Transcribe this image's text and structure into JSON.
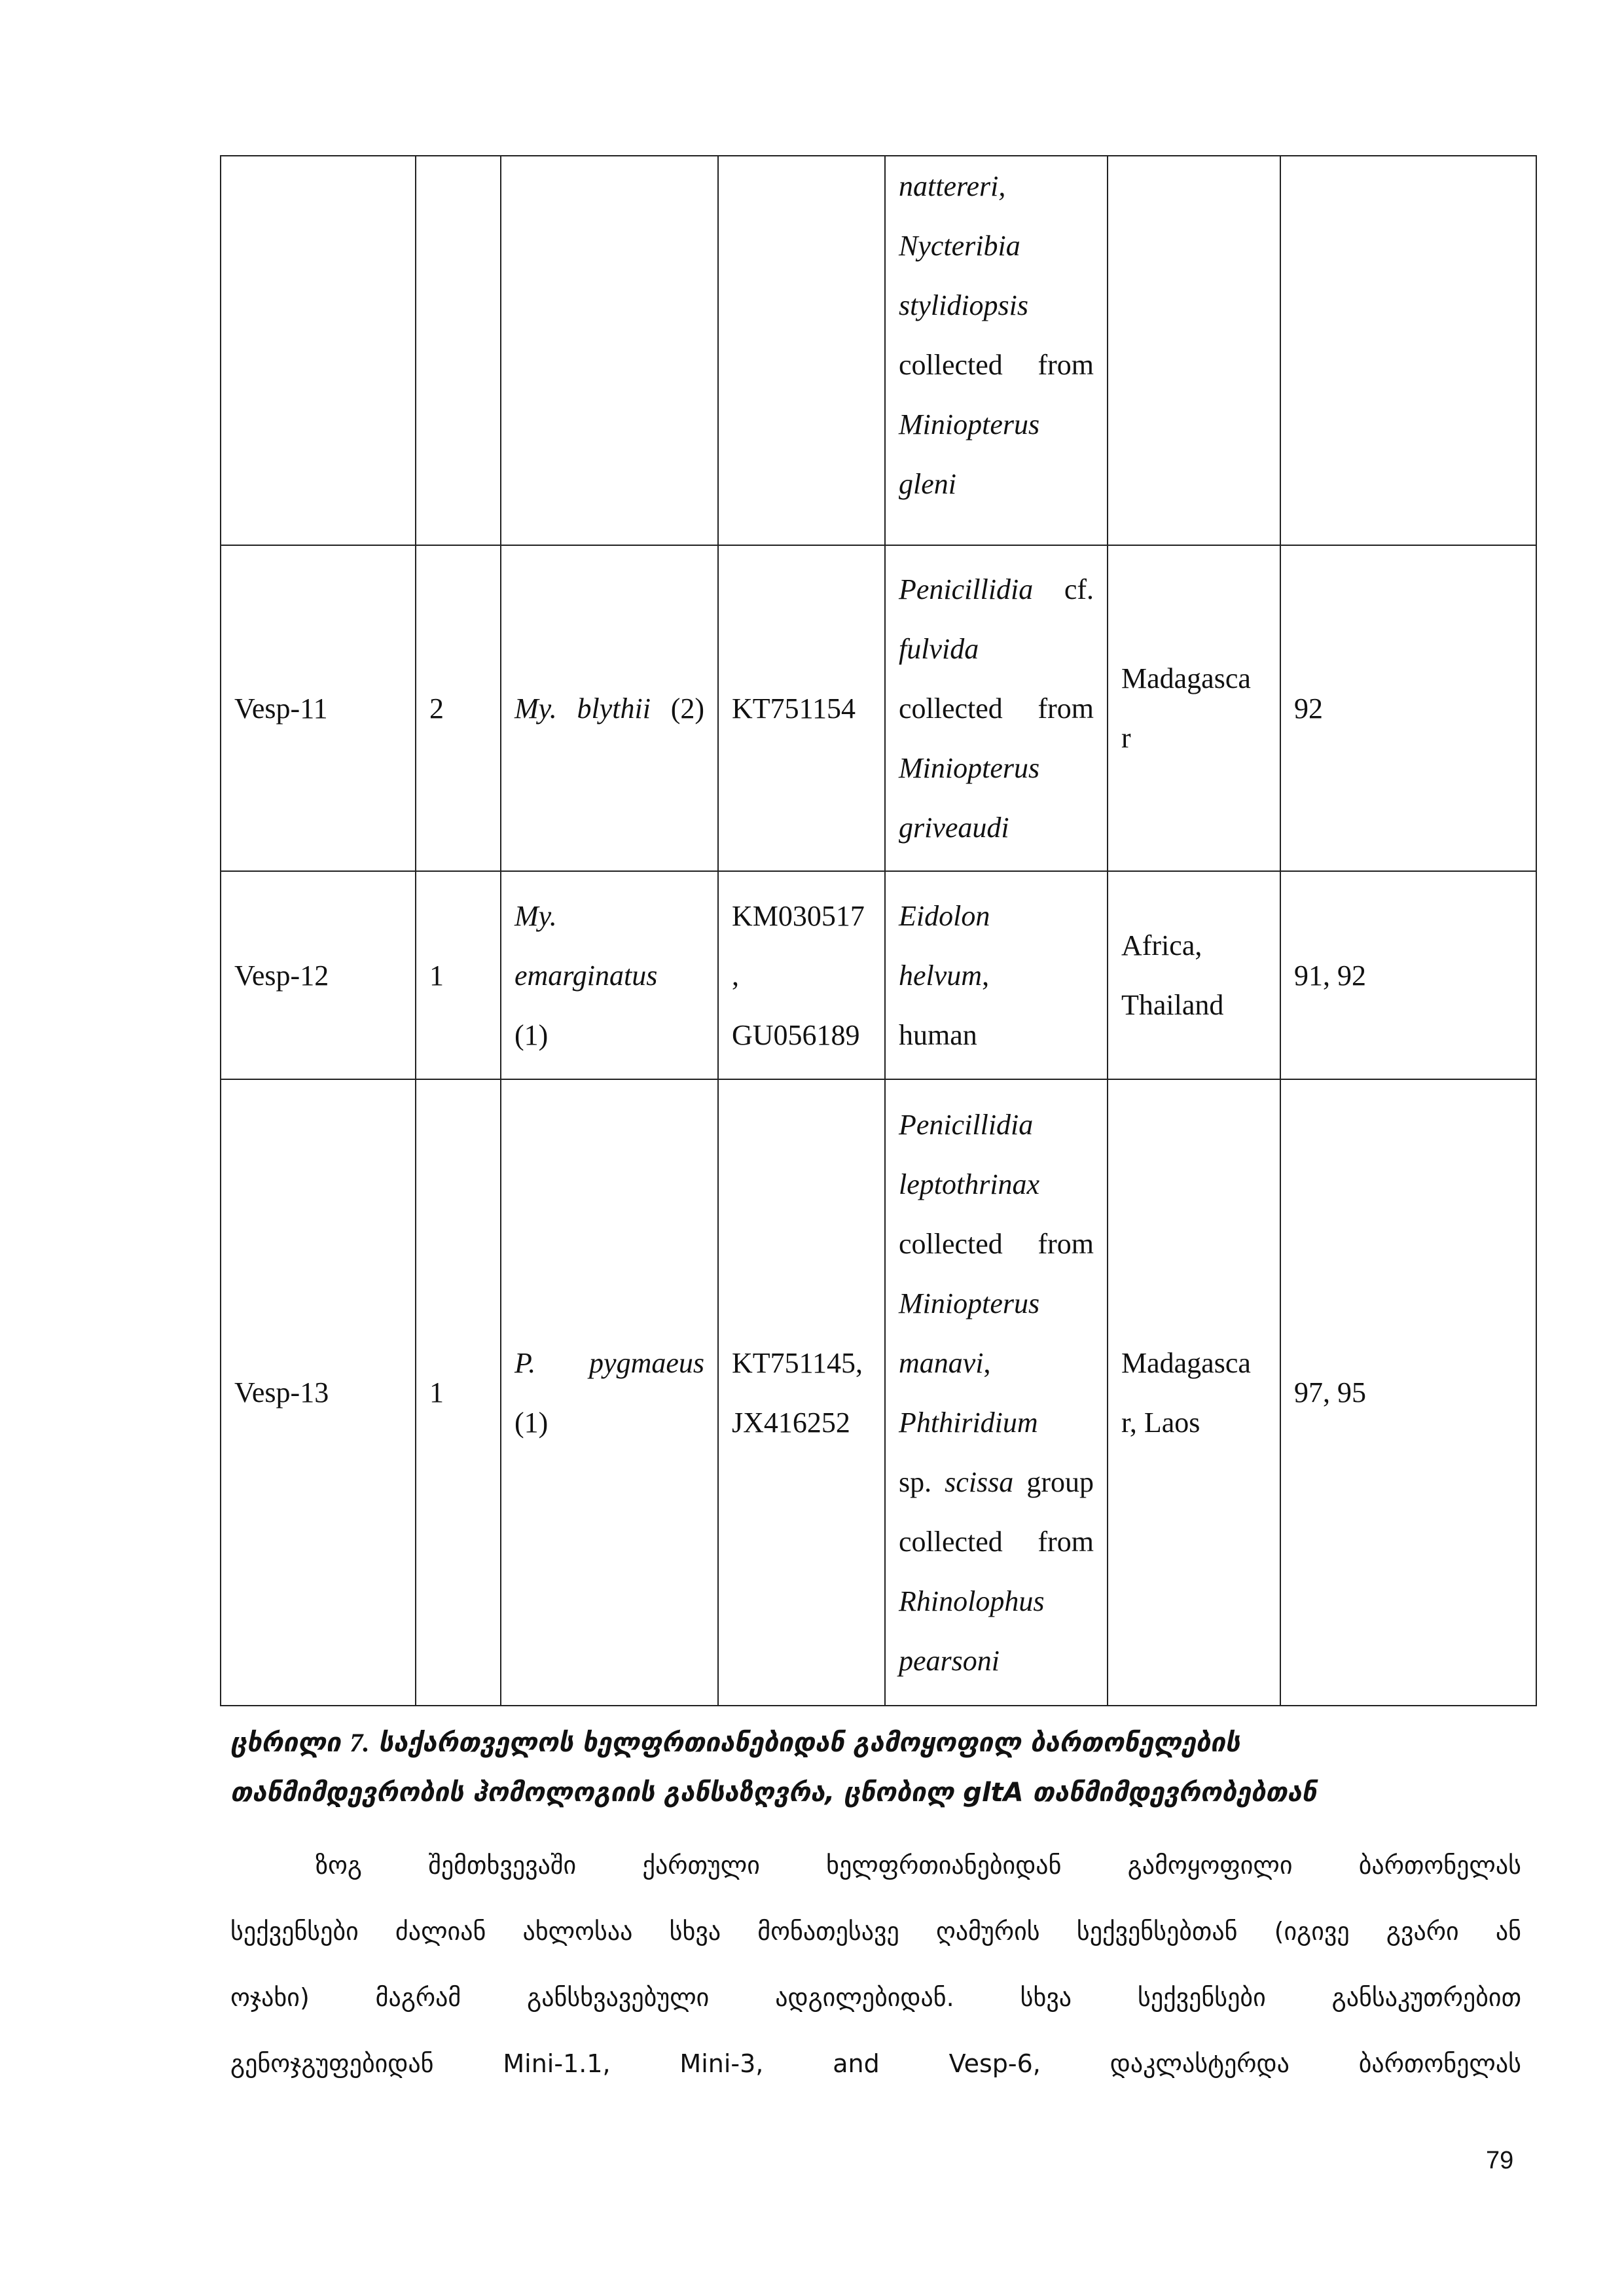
{
  "table": {
    "rows": [
      {
        "cells": [
          [],
          [],
          [],
          [],
          [
            [
              {
                "text": "nattereri,",
                "italic": true
              }
            ],
            [
              {
                "text": "Nycteribia",
                "italic": true
              }
            ],
            [
              {
                "text": "stylidiopsis",
                "italic": true
              }
            ],
            [
              {
                "text": "collected from"
              }
            ],
            [
              {
                "text": "Miniopterus",
                "italic": true
              }
            ],
            [
              {
                "text": "gleni",
                "italic": true
              }
            ]
          ],
          [],
          []
        ]
      },
      {
        "cells": [
          [
            [
              {
                "text": "Vesp-11"
              }
            ]
          ],
          [
            [
              {
                "text": "2"
              }
            ]
          ],
          [
            [
              {
                "text": "My. blythii",
                "italic": true
              },
              {
                "text": " (2)"
              }
            ]
          ],
          [
            [
              {
                "text": "KT751154"
              }
            ]
          ],
          [
            [
              {
                "text": "Penicillidia",
                "italic": true
              },
              {
                "text": " cf."
              }
            ],
            [
              {
                "text": "fulvida",
                "italic": true
              }
            ],
            [
              {
                "text": "collected from"
              }
            ],
            [
              {
                "text": "Miniopterus",
                "italic": true
              }
            ],
            [
              {
                "text": "griveaudi",
                "italic": true
              }
            ]
          ],
          [
            [
              {
                "text": "Madagasca"
              }
            ],
            [
              {
                "text": "r"
              }
            ]
          ],
          [
            [
              {
                "text": "92"
              }
            ]
          ]
        ]
      },
      {
        "cells": [
          [
            [
              {
                "text": "Vesp-12"
              }
            ]
          ],
          [
            [
              {
                "text": "1"
              }
            ]
          ],
          [
            [
              {
                "text": "My.",
                "italic": true
              }
            ],
            [
              {
                "text": "emarginatus",
                "italic": true
              }
            ],
            [
              {
                "text": "(1)"
              }
            ]
          ],
          [
            [
              {
                "text": "KM030517"
              }
            ],
            [
              {
                "text": ","
              }
            ],
            [
              {
                "text": "GU056189"
              }
            ]
          ],
          [
            [
              {
                "text": "Eidolon",
                "italic": true
              }
            ],
            [
              {
                "text": "helvum",
                "italic": true
              },
              {
                "text": ","
              }
            ],
            [
              {
                "text": "human"
              }
            ]
          ],
          [
            [
              {
                "text": "Africa,"
              }
            ],
            [
              {
                "text": "Thailand"
              }
            ]
          ],
          [
            [
              {
                "text": "91, 92"
              }
            ]
          ]
        ]
      },
      {
        "cells": [
          [
            [
              {
                "text": "Vesp-13"
              }
            ]
          ],
          [
            [
              {
                "text": "1"
              }
            ]
          ],
          [
            [
              {
                "text": "P. pygmaeus",
                "italic": true
              }
            ],
            [
              {
                "text": "(1)"
              }
            ]
          ],
          [
            [
              {
                "text": "KT751145,"
              }
            ],
            [
              {
                "text": "JX416252"
              }
            ]
          ],
          [
            [
              {
                "text": "Penicillidia",
                "italic": true
              }
            ],
            [
              {
                "text": "leptothrinax",
                "italic": true
              }
            ],
            [
              {
                "text": "collected from"
              }
            ],
            [
              {
                "text": "Miniopterus",
                "italic": true
              }
            ],
            [
              {
                "text": "manavi",
                "italic": true
              },
              {
                "text": ","
              }
            ],
            [
              {
                "text": "Phthiridium",
                "italic": true
              }
            ],
            [
              {
                "text": "sp. "
              },
              {
                "text": "scissa",
                "italic": true
              },
              {
                "text": " group"
              }
            ],
            [
              {
                "text": "collected from"
              }
            ],
            [
              {
                "text": "Rhinolophus",
                "italic": true
              }
            ],
            [
              {
                "text": "pearsoni",
                "italic": true
              }
            ]
          ],
          [
            [
              {
                "text": "Madagasca"
              }
            ],
            [
              {
                "text": "r, Laos"
              }
            ]
          ],
          [
            [
              {
                "text": "97, 95"
              }
            ]
          ]
        ]
      }
    ]
  },
  "caption": {
    "label": "ცხრილი",
    "number": "7.",
    "line1": "საქართველოს ხელფრთიანებიდან გამოყოფილ ბართონელების",
    "line2": "თანმიმდევრობის ჰომოლოგიის განსაზღვრა, ცნობილ gltA თანმიმდევრობებთან"
  },
  "paragraph": {
    "lines": [
      "ზოგ შემთხვევაში ქართული ხელფრთიანებიდან გამოყოფილი ბართონელას",
      "სექვენსები ძალიან ახლოსაა სხვა მონათესავე ღამურის სექვენსებთან (იგივე გვარი ან",
      "ოჯახი) მაგრამ განსხვავებული ადგილებიდან. სხვა სექვენსები განსაკუთრებით",
      "გენოჯგუფებიდან Mini-1.1, Mini-3, and Vesp-6, დაკლასტერდა ბართონელას"
    ]
  },
  "page_number": "79"
}
